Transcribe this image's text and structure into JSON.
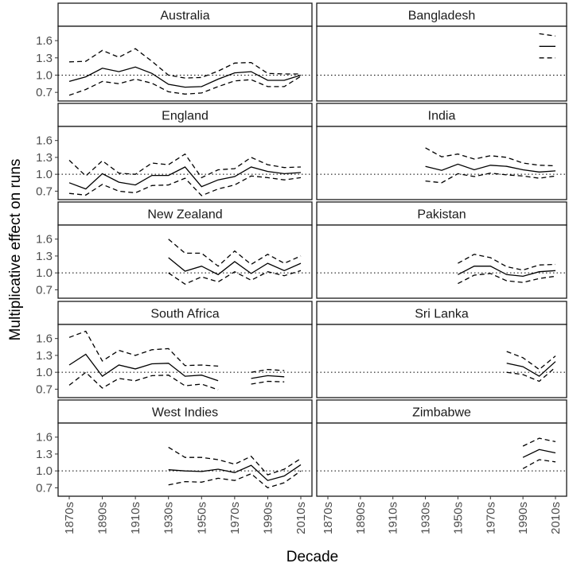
{
  "chart_data": {
    "type": "line",
    "xlabel": "Decade",
    "ylabel": "Multiplicative effect on runs",
    "x_ticks": [
      "1870s",
      "1890s",
      "1910s",
      "1930s",
      "1950s",
      "1970s",
      "1990s",
      "2010s"
    ],
    "decades": [
      "1870s",
      "1880s",
      "1890s",
      "1900s",
      "1910s",
      "1920s",
      "1930s",
      "1940s",
      "1950s",
      "1960s",
      "1970s",
      "1980s",
      "1990s",
      "2000s",
      "2010s"
    ],
    "y_ticks": [
      "0.7",
      "1.0",
      "1.3",
      "1.6"
    ],
    "ylim": [
      0.55,
      1.85
    ],
    "reference_line": 1.0,
    "series": [
      {
        "name": "estimate",
        "line": "solid"
      },
      {
        "name": "lower",
        "line": "dashed"
      },
      {
        "name": "upper",
        "line": "dashed"
      }
    ],
    "panels": [
      {
        "country": "Australia",
        "estimate": [
          0.89,
          0.97,
          1.12,
          1.06,
          1.14,
          1.03,
          0.84,
          0.79,
          0.8,
          0.93,
          1.04,
          1.06,
          0.91,
          0.91,
          1.0
        ],
        "lower": [
          0.65,
          0.75,
          0.89,
          0.85,
          0.93,
          0.86,
          0.71,
          0.67,
          0.69,
          0.8,
          0.9,
          0.92,
          0.8,
          0.8,
          0.98
        ],
        "upper": [
          1.23,
          1.24,
          1.43,
          1.31,
          1.46,
          1.24,
          1.0,
          0.95,
          0.96,
          1.07,
          1.21,
          1.22,
          1.03,
          1.02,
          1.02
        ]
      },
      {
        "country": "Bangladesh",
        "estimate": [
          null,
          null,
          null,
          null,
          null,
          null,
          null,
          null,
          null,
          null,
          null,
          null,
          null,
          1.5,
          1.5
        ],
        "lower": [
          null,
          null,
          null,
          null,
          null,
          null,
          null,
          null,
          null,
          null,
          null,
          null,
          null,
          1.3,
          1.3
        ],
        "upper": [
          null,
          null,
          null,
          null,
          null,
          null,
          null,
          null,
          null,
          null,
          null,
          null,
          null,
          1.72,
          1.68
        ]
      },
      {
        "country": "England",
        "estimate": [
          0.85,
          0.74,
          1.01,
          0.86,
          0.81,
          0.98,
          0.98,
          1.13,
          0.78,
          0.9,
          0.96,
          1.13,
          1.05,
          1.01,
          1.03
        ],
        "lower": [
          0.66,
          0.63,
          0.82,
          0.7,
          0.67,
          0.8,
          0.81,
          0.93,
          0.62,
          0.74,
          0.81,
          0.97,
          0.94,
          0.9,
          0.94
        ],
        "upper": [
          1.25,
          0.97,
          1.24,
          1.02,
          1.0,
          1.2,
          1.17,
          1.36,
          0.94,
          1.08,
          1.1,
          1.3,
          1.17,
          1.12,
          1.13
        ]
      },
      {
        "country": "India",
        "estimate": [
          null,
          null,
          null,
          null,
          null,
          null,
          1.14,
          1.07,
          1.18,
          1.08,
          1.16,
          1.14,
          1.08,
          1.04,
          1.06
        ],
        "lower": [
          null,
          null,
          null,
          null,
          null,
          null,
          0.88,
          0.85,
          1.01,
          0.96,
          1.02,
          0.99,
          0.97,
          0.93,
          0.97
        ],
        "upper": [
          null,
          null,
          null,
          null,
          null,
          null,
          1.47,
          1.31,
          1.36,
          1.27,
          1.33,
          1.3,
          1.2,
          1.16,
          1.15
        ]
      },
      {
        "country": "New Zealand",
        "estimate": [
          null,
          null,
          null,
          null,
          null,
          null,
          1.27,
          1.03,
          1.12,
          0.97,
          1.2,
          0.99,
          1.17,
          1.04,
          1.17
        ],
        "lower": [
          null,
          null,
          null,
          null,
          null,
          null,
          1.0,
          0.8,
          0.93,
          0.84,
          1.02,
          0.87,
          1.02,
          0.95,
          1.04
        ],
        "upper": [
          null,
          null,
          null,
          null,
          null,
          null,
          1.6,
          1.35,
          1.35,
          1.12,
          1.39,
          1.15,
          1.33,
          1.17,
          1.3
        ]
      },
      {
        "country": "Pakistan",
        "estimate": [
          null,
          null,
          null,
          null,
          null,
          null,
          null,
          null,
          0.97,
          1.12,
          1.12,
          0.97,
          0.94,
          1.02,
          1.04
        ],
        "lower": [
          null,
          null,
          null,
          null,
          null,
          null,
          null,
          null,
          0.81,
          0.96,
          0.99,
          0.86,
          0.83,
          0.9,
          0.94
        ],
        "upper": [
          null,
          null,
          null,
          null,
          null,
          null,
          null,
          null,
          1.17,
          1.33,
          1.27,
          1.11,
          1.05,
          1.14,
          1.15
        ]
      },
      {
        "country": "South Africa",
        "estimate": [
          1.13,
          1.32,
          0.93,
          1.13,
          1.06,
          1.15,
          1.16,
          0.93,
          0.95,
          0.85,
          null,
          0.89,
          0.94,
          0.92,
          null
        ],
        "lower": [
          0.77,
          1.0,
          0.72,
          0.89,
          0.85,
          0.94,
          0.95,
          0.76,
          0.79,
          0.69,
          null,
          0.79,
          0.84,
          0.83,
          null
        ],
        "upper": [
          1.62,
          1.73,
          1.2,
          1.39,
          1.3,
          1.4,
          1.42,
          1.12,
          1.13,
          1.11,
          null,
          1.0,
          1.05,
          1.03,
          null
        ]
      },
      {
        "country": "Sri Lanka",
        "estimate": [
          null,
          null,
          null,
          null,
          null,
          null,
          null,
          null,
          null,
          null,
          null,
          1.16,
          1.1,
          0.93,
          1.19
        ],
        "lower": [
          null,
          null,
          null,
          null,
          null,
          null,
          null,
          null,
          null,
          null,
          null,
          1.0,
          0.96,
          0.84,
          1.09
        ],
        "upper": [
          null,
          null,
          null,
          null,
          null,
          null,
          null,
          null,
          null,
          null,
          null,
          1.37,
          1.26,
          1.05,
          1.29
        ]
      },
      {
        "country": "West Indies",
        "estimate": [
          null,
          null,
          null,
          null,
          null,
          null,
          1.02,
          1.0,
          0.99,
          1.03,
          0.97,
          1.1,
          0.83,
          0.91,
          1.11
        ],
        "lower": [
          null,
          null,
          null,
          null,
          null,
          null,
          0.75,
          0.81,
          0.8,
          0.87,
          0.83,
          0.95,
          0.7,
          0.79,
          1.0
        ],
        "upper": [
          null,
          null,
          null,
          null,
          null,
          null,
          1.42,
          1.24,
          1.24,
          1.2,
          1.12,
          1.26,
          0.93,
          1.03,
          1.22
        ]
      },
      {
        "country": "Zimbabwe",
        "estimate": [
          null,
          null,
          null,
          null,
          null,
          null,
          null,
          null,
          null,
          null,
          null,
          null,
          1.24,
          1.38,
          1.32
        ],
        "lower": [
          null,
          null,
          null,
          null,
          null,
          null,
          null,
          null,
          null,
          null,
          null,
          null,
          1.04,
          1.2,
          1.16
        ],
        "upper": [
          null,
          null,
          null,
          null,
          null,
          null,
          null,
          null,
          null,
          null,
          null,
          null,
          1.44,
          1.58,
          1.52
        ]
      }
    ]
  }
}
